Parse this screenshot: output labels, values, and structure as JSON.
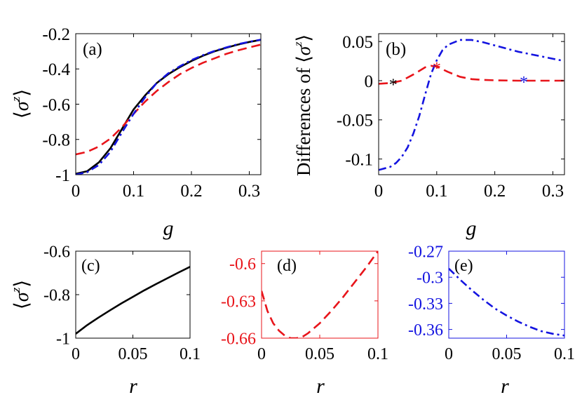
{
  "colors": {
    "black": "#000000",
    "red": "#e8141a",
    "blue": "#1414e0"
  },
  "chart_data": [
    {
      "id": "a",
      "type": "line",
      "panel_label": "(a)",
      "xlabel": "g",
      "ylabel": "⟨σ^z⟩",
      "xlim": [
        0,
        0.32
      ],
      "ylim": [
        -1,
        -0.2
      ],
      "xticks": [
        0,
        0.1,
        0.2,
        0.3
      ],
      "xtick_labels": [
        "0",
        "0.1",
        "0.2",
        "0.3"
      ],
      "yticks": [
        -1,
        -0.8,
        -0.6,
        -0.4,
        -0.2
      ],
      "ytick_labels": [
        "-1",
        "-0.8",
        "-0.6",
        "-0.4",
        "-0.2"
      ],
      "series": [
        {
          "style": "solid",
          "color": "black",
          "x": [
            0,
            0.02,
            0.04,
            0.06,
            0.08,
            0.1,
            0.12,
            0.14,
            0.16,
            0.18,
            0.2,
            0.22,
            0.24,
            0.26,
            0.28,
            0.3,
            0.32
          ],
          "y": [
            -0.995,
            -0.98,
            -0.93,
            -0.85,
            -0.74,
            -0.63,
            -0.55,
            -0.48,
            -0.43,
            -0.39,
            -0.355,
            -0.325,
            -0.3,
            -0.28,
            -0.262,
            -0.247,
            -0.235
          ]
        },
        {
          "style": "dashed",
          "color": "red",
          "x": [
            0,
            0.02,
            0.04,
            0.06,
            0.08,
            0.1,
            0.12,
            0.14,
            0.16,
            0.18,
            0.2,
            0.22,
            0.24,
            0.26,
            0.28,
            0.3,
            0.32
          ],
          "y": [
            -0.885,
            -0.87,
            -0.84,
            -0.795,
            -0.73,
            -0.655,
            -0.585,
            -0.525,
            -0.475,
            -0.43,
            -0.395,
            -0.365,
            -0.34,
            -0.315,
            -0.295,
            -0.278,
            -0.262
          ]
        },
        {
          "style": "dashdot",
          "color": "blue",
          "x": [
            0,
            0.02,
            0.04,
            0.06,
            0.08,
            0.1,
            0.12,
            0.14,
            0.16,
            0.18,
            0.2,
            0.22,
            0.24,
            0.26,
            0.28,
            0.3,
            0.32
          ],
          "y": [
            -1,
            -0.985,
            -0.945,
            -0.87,
            -0.76,
            -0.655,
            -0.56,
            -0.48,
            -0.425,
            -0.385,
            -0.35,
            -0.322,
            -0.298,
            -0.278,
            -0.26,
            -0.246,
            -0.234
          ]
        }
      ]
    },
    {
      "id": "b",
      "type": "line",
      "panel_label": "(b)",
      "xlabel": "g",
      "ylabel": "Differences of ⟨σ^z⟩",
      "xlim": [
        0,
        0.32
      ],
      "ylim": [
        -0.12,
        0.06
      ],
      "xticks": [
        0,
        0.1,
        0.2,
        0.3
      ],
      "xtick_labels": [
        "0",
        "0.1",
        "0.2",
        "0.3"
      ],
      "yticks": [
        -0.1,
        -0.05,
        0,
        0.05
      ],
      "ytick_labels": [
        "-0.1",
        "-0.05",
        "0",
        "0.05"
      ],
      "series": [
        {
          "style": "dashed",
          "color": "red",
          "x": [
            0,
            0.02,
            0.04,
            0.06,
            0.08,
            0.09,
            0.1,
            0.12,
            0.14,
            0.16,
            0.18,
            0.2,
            0.24,
            0.28,
            0.32
          ],
          "y": [
            -0.004,
            -0.003,
            0.0,
            0.008,
            0.017,
            0.019,
            0.018,
            0.011,
            0.005,
            0.002,
            0.001,
            0.0005,
            0.0,
            0.0,
            0.0
          ]
        },
        {
          "style": "dashdot",
          "color": "blue",
          "x": [
            0,
            0.02,
            0.03,
            0.04,
            0.05,
            0.06,
            0.07,
            0.08,
            0.09,
            0.1,
            0.11,
            0.12,
            0.14,
            0.16,
            0.18,
            0.2,
            0.22,
            0.24,
            0.26,
            0.28,
            0.3,
            0.32
          ],
          "y": [
            -0.114,
            -0.11,
            -0.105,
            -0.097,
            -0.085,
            -0.067,
            -0.045,
            -0.018,
            0.008,
            0.026,
            0.039,
            0.046,
            0.052,
            0.052,
            0.049,
            0.045,
            0.041,
            0.037,
            0.034,
            0.031,
            0.028,
            0.025
          ]
        }
      ],
      "markers": [
        {
          "x": 0.025,
          "y": -0.003,
          "color": "black",
          "symbol": "*"
        },
        {
          "x": 0.1,
          "y": 0.018,
          "color": "red",
          "symbol": "*"
        },
        {
          "x": 0.25,
          "y": 0.0,
          "color": "blue",
          "symbol": "*"
        }
      ]
    },
    {
      "id": "c",
      "type": "line",
      "panel_label": "(c)",
      "xlabel": "r",
      "ylabel": "⟨σ^z⟩",
      "axis_color": "black",
      "xlim": [
        0,
        0.1
      ],
      "ylim": [
        -1,
        -0.6
      ],
      "xticks": [
        0,
        0.05,
        0.1
      ],
      "xtick_labels": [
        "0",
        "0.05",
        "0.1"
      ],
      "yticks": [
        -1,
        -0.8,
        -0.6
      ],
      "ytick_labels": [
        "-1",
        "-0.8",
        "-0.6"
      ],
      "series": [
        {
          "style": "solid",
          "color": "black",
          "x": [
            0,
            0.01,
            0.02,
            0.03,
            0.04,
            0.05,
            0.06,
            0.07,
            0.08,
            0.09,
            0.1
          ],
          "y": [
            -0.98,
            -0.94,
            -0.905,
            -0.872,
            -0.84,
            -0.81,
            -0.78,
            -0.752,
            -0.725,
            -0.698,
            -0.672
          ]
        }
      ]
    },
    {
      "id": "d",
      "type": "line",
      "panel_label": "(d)",
      "xlabel": "r",
      "ylabel": "",
      "axis_color": "red",
      "xlim": [
        0,
        0.1
      ],
      "ylim": [
        -0.66,
        -0.59
      ],
      "xticks": [
        0,
        0.05,
        0.1
      ],
      "xtick_labels": [
        "0",
        "0.05",
        "0.1"
      ],
      "yticks": [
        -0.66,
        -0.63,
        -0.6
      ],
      "ytick_labels": [
        "-0.66",
        "-0.63",
        "-0.6"
      ],
      "series": [
        {
          "style": "dashed",
          "color": "red",
          "x": [
            0,
            0.005,
            0.01,
            0.015,
            0.02,
            0.025,
            0.03,
            0.035,
            0.04,
            0.05,
            0.06,
            0.07,
            0.08,
            0.09,
            0.1
          ],
          "y": [
            -0.622,
            -0.638,
            -0.648,
            -0.654,
            -0.658,
            -0.66,
            -0.66,
            -0.659,
            -0.656,
            -0.648,
            -0.638,
            -0.627,
            -0.615,
            -0.603,
            -0.59
          ]
        }
      ]
    },
    {
      "id": "e",
      "type": "line",
      "panel_label": "(e)",
      "xlabel": "r",
      "ylabel": "",
      "axis_color": "blue",
      "xlim": [
        0,
        0.1
      ],
      "ylim": [
        -0.37,
        -0.27
      ],
      "xticks": [
        0,
        0.05,
        0.1
      ],
      "xtick_labels": [
        "0",
        "0.05",
        "0.1"
      ],
      "yticks": [
        -0.36,
        -0.33,
        -0.3,
        -0.27
      ],
      "ytick_labels": [
        "-0.36",
        "-0.33",
        "-0.3",
        "-0.27"
      ],
      "series": [
        {
          "style": "dashdot",
          "color": "blue",
          "x": [
            0,
            0.01,
            0.02,
            0.03,
            0.04,
            0.05,
            0.06,
            0.07,
            0.08,
            0.09,
            0.1
          ],
          "y": [
            -0.29,
            -0.303,
            -0.315,
            -0.326,
            -0.336,
            -0.344,
            -0.351,
            -0.357,
            -0.362,
            -0.365,
            -0.367
          ]
        }
      ]
    }
  ]
}
